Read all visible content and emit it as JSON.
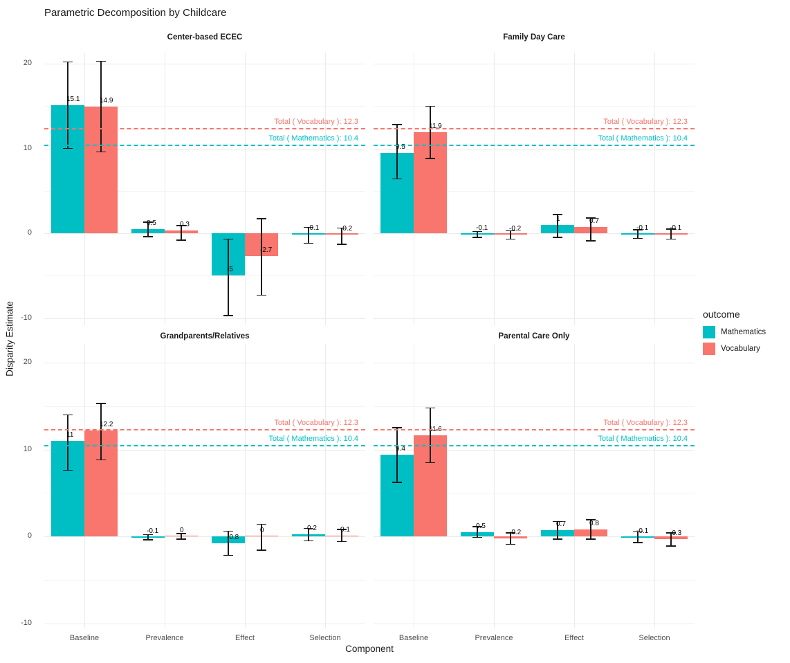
{
  "chart_data": {
    "type": "bar",
    "layout_hint": "2x2 faceted grouped bar chart with error bars and dashed reference lines, legend on right, grid on",
    "title": "Parametric Decomposition by Childcare",
    "xlabel": "Component",
    "ylabel": "Disparity Estimate",
    "categories": [
      "Baseline",
      "Prevalence",
      "Effect",
      "Selection"
    ],
    "y_ticks": [
      20,
      10,
      0,
      -10
    ],
    "y_minor_ticks": [
      15,
      5,
      -5
    ],
    "ylim": [
      -11,
      21.5
    ],
    "colors": {
      "mathematics": "#00BFC4",
      "vocabulary": "#F8766D",
      "grid_major": "#ebebeb",
      "grid_minor": "#f4f4f4",
      "error_bar": "#1a1a1a"
    },
    "legend": {
      "title": "outcome",
      "position": "right",
      "entries": [
        {
          "label": "Mathematics",
          "color": "#00BFC4"
        },
        {
          "label": "Vocabulary",
          "color": "#F8766D"
        }
      ]
    },
    "reference_lines": [
      {
        "label": "Total ( Vocabulary ): 12.3",
        "value": 12.3,
        "color": "#F8766D",
        "style": "dashed"
      },
      {
        "label": "Total ( Mathematics ): 10.4",
        "value": 10.4,
        "color": "#00BFC4",
        "style": "dashed"
      }
    ],
    "panels": [
      {
        "title": "Center-based ECEC",
        "series": [
          {
            "name": "Mathematics",
            "color": "#00BFC4",
            "values": [
              15.1,
              0.5,
              -5,
              -0.1
            ],
            "err_low": [
              10.0,
              -0.4,
              -9.7,
              -1.2
            ],
            "err_high": [
              20.2,
              1.3,
              -0.7,
              0.7
            ]
          },
          {
            "name": "Vocabulary",
            "color": "#F8766D",
            "values": [
              14.9,
              0.3,
              -2.7,
              -0.2
            ],
            "err_low": [
              9.6,
              -0.8,
              -7.3,
              -1.3
            ],
            "err_high": [
              20.3,
              0.9,
              1.7,
              0.6
            ]
          }
        ]
      },
      {
        "title": "Family Day Care",
        "series": [
          {
            "name": "Mathematics",
            "color": "#00BFC4",
            "values": [
              9.5,
              -0.1,
              1,
              -0.1
            ],
            "err_low": [
              6.4,
              -0.5,
              -0.5,
              -0.6
            ],
            "err_high": [
              12.8,
              0.2,
              2.2,
              0.4
            ]
          },
          {
            "name": "Vocabulary",
            "color": "#F8766D",
            "values": [
              11.9,
              -0.2,
              0.7,
              -0.1
            ],
            "err_low": [
              8.8,
              -0.7,
              -0.9,
              -0.7
            ],
            "err_high": [
              15.0,
              0.3,
              1.8,
              0.5
            ]
          }
        ]
      },
      {
        "title": "Grandparents/Relatives",
        "series": [
          {
            "name": "Mathematics",
            "color": "#00BFC4",
            "values": [
              11,
              -0.1,
              -0.8,
              0.2
            ],
            "err_low": [
              7.6,
              -0.4,
              -2.2,
              -0.5
            ],
            "err_high": [
              14.0,
              0.2,
              0.6,
              0.9
            ]
          },
          {
            "name": "Vocabulary",
            "color": "#F8766D",
            "values": [
              12.2,
              0,
              0,
              0.1
            ],
            "err_low": [
              8.8,
              -0.3,
              -1.6,
              -0.6
            ],
            "err_high": [
              15.3,
              0.3,
              1.4,
              0.8
            ]
          }
        ]
      },
      {
        "title": "Parental Care Only",
        "series": [
          {
            "name": "Mathematics",
            "color": "#00BFC4",
            "values": [
              9.4,
              0.5,
              0.7,
              -0.1
            ],
            "err_low": [
              6.2,
              -0.1,
              -0.3,
              -0.7
            ],
            "err_high": [
              12.5,
              1.1,
              1.7,
              0.5
            ]
          },
          {
            "name": "Vocabulary",
            "color": "#F8766D",
            "values": [
              11.6,
              -0.2,
              0.8,
              -0.3
            ],
            "err_low": [
              8.5,
              -0.9,
              -0.3,
              -1.1
            ],
            "err_high": [
              14.8,
              0.4,
              1.9,
              0.4
            ]
          }
        ]
      }
    ]
  }
}
